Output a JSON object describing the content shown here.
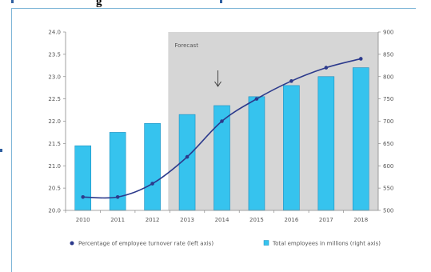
{
  "header_text": "g",
  "chart_data": {
    "type": "bar+line",
    "categories": [
      "2010",
      "2011",
      "2012",
      "2013",
      "2014",
      "2015",
      "2016",
      "2017",
      "2018"
    ],
    "forecast_label": "Forecast",
    "forecast_start": "2013",
    "left_axis": {
      "min": 20.0,
      "max": 24.0,
      "ticks": [
        "20.0",
        "20.5",
        "21.0",
        "21.5",
        "22.0",
        "22.5",
        "23.0",
        "23.5",
        "24.0"
      ]
    },
    "right_axis": {
      "min": 500,
      "max": 900,
      "ticks": [
        "500",
        "550",
        "600",
        "650",
        "700",
        "750",
        "800",
        "850",
        "900"
      ]
    },
    "series": [
      {
        "name": "Percentage of employee turnover rate (left axis)",
        "type": "line",
        "axis": "left",
        "values": [
          20.3,
          20.3,
          20.6,
          21.2,
          22.0,
          22.5,
          22.9,
          23.2,
          23.4
        ]
      },
      {
        "name": "Total employees in millions (right axis)",
        "type": "bar",
        "axis": "right",
        "values": [
          645,
          675,
          695,
          715,
          735,
          755,
          780,
          800,
          820
        ]
      }
    ],
    "annotation": "arrow pointing down at 2014",
    "colors": {
      "bar": "#36c3ee",
      "bar_edge": "#1c8fc0",
      "line": "#2c3a8c",
      "forecast_bg": "#d6d6d6"
    }
  }
}
